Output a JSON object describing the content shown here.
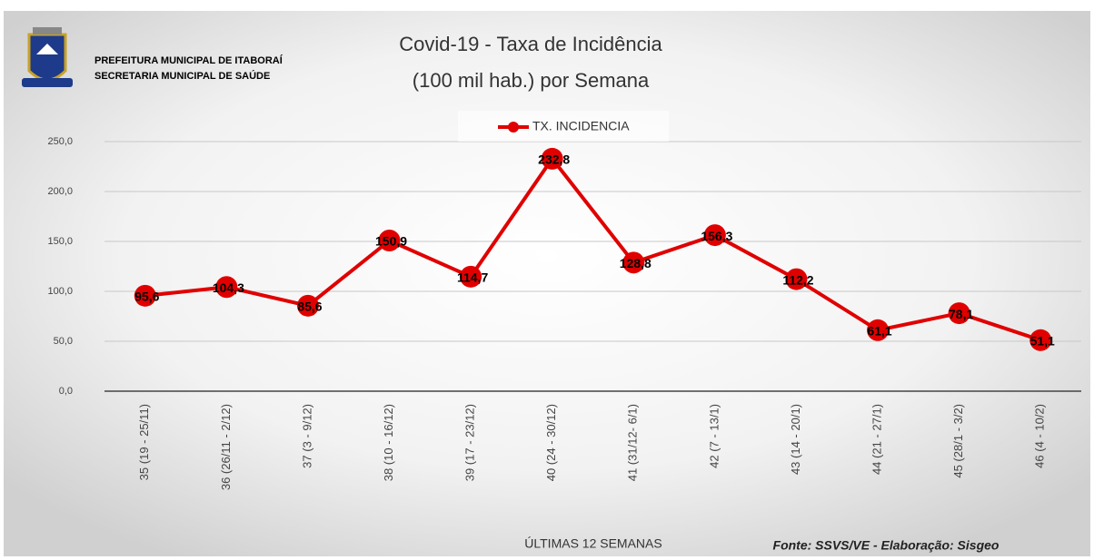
{
  "header": {
    "lines": [
      "PREFEITURA MUNICIPAL DE ITABORAÍ",
      "SECRETARIA MUNICIPAL DE SAÚDE"
    ]
  },
  "chart_data": {
    "type": "line",
    "title": [
      "Covid-19 - Taxa de Incidência",
      "(100 mil hab.) por Semana"
    ],
    "categories": [
      "35 (19 - 25/11)",
      "36 (26/11 - 2/12)",
      "37 (3 - 9/12)",
      "38 (10 - 16/12)",
      "39 (17 - 23/12)",
      "40 (24 - 30/12)",
      "41 (31/12- 6/1)",
      "42 (7 - 13/1)",
      "43 (14 - 20/1)",
      "44 (21 - 27/1)",
      "45 (28/1 - 3/2)",
      "46 (4 - 10/2)"
    ],
    "series": [
      {
        "name": "TX. INCIDENCIA",
        "color": "#e00000",
        "values": [
          95.6,
          104.3,
          85.6,
          150.9,
          114.7,
          232.8,
          128.8,
          156.3,
          112.2,
          61.1,
          78.1,
          51.1
        ],
        "value_labels": [
          "95,6",
          "104,3",
          "85,6",
          "150,9",
          "114,7",
          "232,8",
          "128,8",
          "156,3",
          "112,2",
          "61,1",
          "78,1",
          "51,1"
        ]
      }
    ],
    "ylim": [
      0,
      250
    ],
    "yticks": [
      {
        "value": 0,
        "label": "0,0"
      },
      {
        "value": 50,
        "label": "50,0"
      },
      {
        "value": 100,
        "label": "100,0"
      },
      {
        "value": 150,
        "label": "150,0"
      },
      {
        "value": 200,
        "label": "200,0"
      },
      {
        "value": 250,
        "label": "250,0"
      }
    ],
    "grid": true,
    "legend": "top",
    "xlabel": "ÚLTIMAS 12 SEMANAS",
    "source": "Fonte: SSVS/VE - Elaboração: Sisgeo"
  }
}
